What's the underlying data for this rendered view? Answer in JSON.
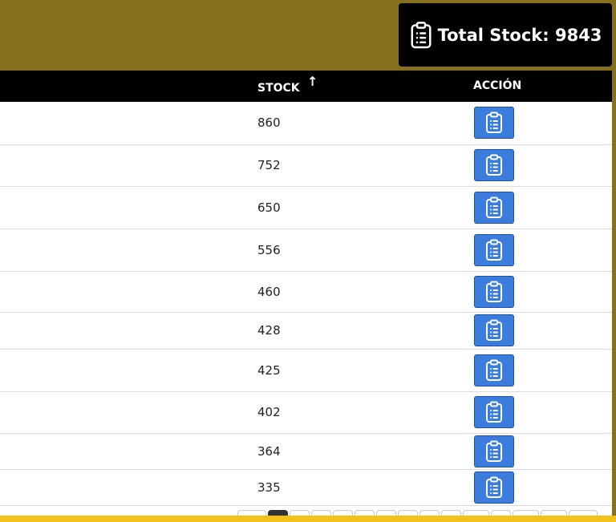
{
  "header": {
    "total_label": "Total Stock: 9843",
    "total_icon": "clipboard-list-icon",
    "band_color": "#86701e"
  },
  "table": {
    "columns": {
      "stock": "STOCK",
      "action": "ACCIÓN"
    },
    "sort": {
      "column": "stock",
      "indicator": "↑"
    },
    "rows": [
      {
        "stock": "860"
      },
      {
        "stock": "752"
      },
      {
        "stock": "650"
      },
      {
        "stock": "556"
      },
      {
        "stock": "460"
      },
      {
        "stock": "428"
      },
      {
        "stock": "425"
      },
      {
        "stock": "402"
      },
      {
        "stock": "364"
      },
      {
        "stock": "335"
      }
    ],
    "action_icon": "clipboard-list-icon",
    "action_color": "#3b7ddd"
  },
  "pagination": {
    "current_page_index": 1
  },
  "footer": {
    "bar_color": "#f2c21b"
  }
}
